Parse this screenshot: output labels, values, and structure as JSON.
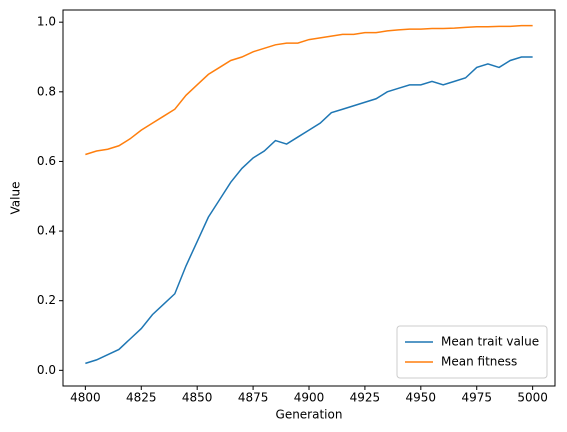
{
  "chart_data": {
    "type": "line",
    "xlabel": "Generation",
    "ylabel": "Value",
    "x": [
      4800,
      4805,
      4810,
      4815,
      4820,
      4825,
      4830,
      4835,
      4840,
      4845,
      4850,
      4855,
      4860,
      4865,
      4870,
      4875,
      4880,
      4885,
      4890,
      4895,
      4900,
      4905,
      4910,
      4915,
      4920,
      4925,
      4930,
      4935,
      4940,
      4945,
      4950,
      4955,
      4960,
      4965,
      4970,
      4975,
      4980,
      4985,
      4990,
      4995,
      5000
    ],
    "series": [
      {
        "name": "Mean trait value",
        "color": "#1f77b4",
        "values": [
          0.02,
          0.03,
          0.045,
          0.06,
          0.09,
          0.12,
          0.16,
          0.19,
          0.22,
          0.3,
          0.37,
          0.44,
          0.49,
          0.54,
          0.58,
          0.61,
          0.63,
          0.66,
          0.65,
          0.67,
          0.69,
          0.71,
          0.74,
          0.75,
          0.76,
          0.77,
          0.78,
          0.8,
          0.81,
          0.82,
          0.82,
          0.83,
          0.82,
          0.83,
          0.84,
          0.87,
          0.88,
          0.87,
          0.89,
          0.9,
          0.9
        ]
      },
      {
        "name": "Mean fitness",
        "color": "#ff7f0e",
        "values": [
          0.62,
          0.63,
          0.635,
          0.645,
          0.665,
          0.69,
          0.71,
          0.73,
          0.75,
          0.79,
          0.82,
          0.85,
          0.87,
          0.89,
          0.9,
          0.915,
          0.925,
          0.935,
          0.94,
          0.94,
          0.95,
          0.955,
          0.96,
          0.965,
          0.965,
          0.97,
          0.97,
          0.975,
          0.978,
          0.98,
          0.98,
          0.982,
          0.982,
          0.983,
          0.985,
          0.987,
          0.987,
          0.988,
          0.988,
          0.99,
          0.99
        ]
      }
    ],
    "xlim": [
      4790,
      5010
    ],
    "ylim": [
      -0.045,
      1.035
    ],
    "xticks": [
      4800,
      4825,
      4850,
      4875,
      4900,
      4925,
      4950,
      4975,
      5000
    ],
    "yticks": [
      {
        "value": 0,
        "label": "0.0"
      },
      0.2,
      0.4,
      0.6,
      0.8,
      {
        "value": 1,
        "label": "1.0"
      }
    ],
    "grid": false,
    "legend": "lower right"
  }
}
